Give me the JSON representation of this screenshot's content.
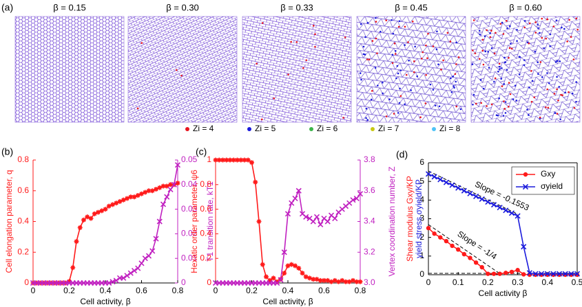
{
  "figure": {
    "panel_labels": [
      "(a)",
      "(b)",
      "(c)",
      "(d)"
    ],
    "snapshots": [
      "β = 0.15",
      "β = 0.30",
      "β = 0.33",
      "β = 0.45",
      "β = 0.60"
    ],
    "legend": [
      {
        "label": "Zi = 4",
        "color": "#e8141e"
      },
      {
        "label": "Zi = 5",
        "color": "#1a1adc"
      },
      {
        "label": "Zi = 6",
        "color": "#3cb44b"
      },
      {
        "label": "Zi = 7",
        "color": "#c8c814"
      },
      {
        "label": "Zi = 8",
        "color": "#4fc3f7"
      }
    ]
  },
  "chart_data": [
    {
      "type": "line",
      "x_label": "Cell activity, β",
      "y_label": [
        "Cell elongation parameter, q"
      ],
      "y2_label": "T1 transition rate, kT1",
      "x": [
        0,
        0.02,
        0.04,
        0.06,
        0.08,
        0.1,
        0.12,
        0.14,
        0.16,
        0.18,
        0.2,
        0.22,
        0.24,
        0.26,
        0.28,
        0.3,
        0.32,
        0.34,
        0.36,
        0.38,
        0.4,
        0.42,
        0.44,
        0.46,
        0.48,
        0.5,
        0.52,
        0.54,
        0.56,
        0.58,
        0.6,
        0.62,
        0.64,
        0.66,
        0.68,
        0.7,
        0.72,
        0.74,
        0.76,
        0.78,
        0.8
      ],
      "xlim": [
        0,
        0.8
      ],
      "xticks": [
        0,
        0.2,
        0.4,
        0.6,
        0.8
      ],
      "ylim": [
        0,
        0.8
      ],
      "yticks": [
        0,
        0.2,
        0.4,
        0.6,
        0.8
      ],
      "y2lim": [
        0,
        0.05
      ],
      "y2ticks": [
        0,
        0.01,
        0.02,
        0.03,
        0.04,
        0.05
      ],
      "box": false,
      "series": [
        {
          "color": "#ff1a1a",
          "marker": "asterisk",
          "values": [
            0,
            0,
            0,
            0,
            0,
            0,
            0,
            0,
            0,
            0,
            0.01,
            0.1,
            0.27,
            0.36,
            0.41,
            0.43,
            0.42,
            0.45,
            0.46,
            0.47,
            0.48,
            0.5,
            0.51,
            0.52,
            0.53,
            0.54,
            0.55,
            0.56,
            0.56,
            0.57,
            0.58,
            0.59,
            0.6,
            0.6,
            0.61,
            0.62,
            0.63,
            0.63,
            0.64,
            0.64,
            0.65
          ]
        },
        {
          "color": "#c020c0",
          "marker": "x",
          "axis": "y2",
          "values": [
            0,
            0,
            0,
            0,
            0,
            0,
            0,
            0,
            0,
            0,
            0,
            0,
            0,
            0,
            0,
            0,
            0,
            0,
            0,
            0,
            0,
            0,
            0.0005,
            0.001,
            0.002,
            0.002,
            0.003,
            0.004,
            0.005,
            0.006,
            0.008,
            0.01,
            0.011,
            0.013,
            0.018,
            0.025,
            0.032,
            0.035,
            0.038,
            0.04,
            0.048
          ]
        }
      ]
    },
    {
      "type": "line",
      "x_label": "Cell activity, β",
      "y_label": [
        "Hexatic order parameter, ψ6"
      ],
      "y2_label": "Vertex coordination number, Z",
      "x": [
        0,
        0.02,
        0.04,
        0.06,
        0.08,
        0.1,
        0.12,
        0.14,
        0.16,
        0.18,
        0.2,
        0.22,
        0.24,
        0.26,
        0.28,
        0.3,
        0.32,
        0.34,
        0.36,
        0.38,
        0.4,
        0.42,
        0.44,
        0.46,
        0.48,
        0.5,
        0.52,
        0.54,
        0.56,
        0.58,
        0.6,
        0.62,
        0.64,
        0.66,
        0.68,
        0.7,
        0.72,
        0.74,
        0.76,
        0.78,
        0.8
      ],
      "xlim": [
        0,
        0.8
      ],
      "xticks": [
        0,
        0.2,
        0.4,
        0.6,
        0.8
      ],
      "ylim": [
        0,
        1
      ],
      "yticks": [
        0,
        0.2,
        0.4,
        0.6,
        0.8,
        1
      ],
      "y2lim": [
        3,
        3.8
      ],
      "y2ticks": [
        {
          "value": 3,
          "label": "3.0"
        },
        3.2,
        3.4,
        3.6,
        3.8
      ],
      "box": false,
      "series": [
        {
          "color": "#ff1a1a",
          "marker": "asterisk",
          "values": [
            1,
            1,
            1,
            1,
            1,
            1,
            1,
            1,
            1,
            1,
            0.98,
            0.82,
            0.5,
            0.15,
            0.05,
            0.02,
            0.04,
            0.01,
            0.03,
            0.08,
            0.14,
            0.15,
            0.14,
            0.12,
            0.08,
            0.05,
            0.04,
            0.03,
            0.03,
            0.02,
            0.02,
            0.02,
            0.01,
            0.02,
            0.01,
            0.02,
            0.01,
            0.01,
            0.02,
            0.01,
            0.01
          ]
        },
        {
          "color": "#c020c0",
          "marker": "x",
          "axis": "y2",
          "values": [
            3,
            3,
            3,
            3,
            3,
            3,
            3,
            3,
            3,
            3,
            3,
            3,
            3,
            3,
            3,
            3,
            3,
            3,
            3.02,
            3.2,
            3.45,
            3.52,
            3.55,
            3.6,
            3.45,
            3.43,
            3.42,
            3.4,
            3.43,
            3.38,
            3.42,
            3.4,
            3.44,
            3.42,
            3.46,
            3.48,
            3.5,
            3.52,
            3.54,
            3.55,
            3.58
          ]
        }
      ]
    },
    {
      "type": "line",
      "x_label": "Cell activity β",
      "y_label": [
        "Shear modulus Gxy/KP",
        "yield stress σyield/KP"
      ],
      "x": [
        0,
        0.02,
        0.04,
        0.06,
        0.08,
        0.1,
        0.12,
        0.14,
        0.16,
        0.18,
        0.2,
        0.22,
        0.24,
        0.26,
        0.28,
        0.3,
        0.32,
        0.34,
        0.36,
        0.38,
        0.4,
        0.42,
        0.44,
        0.46,
        0.48,
        0.5
      ],
      "xlim": [
        0,
        0.5
      ],
      "xticks": [
        0,
        0.1,
        0.2,
        0.3,
        0.4,
        0.5
      ],
      "ylim": [
        0,
        6
      ],
      "yticks": [
        0,
        1,
        2,
        3,
        4,
        5,
        6
      ],
      "box": true,
      "legend": "upper right",
      "annotations": [
        "Slope = -0.1553",
        "Slope = -1/4"
      ],
      "series": [
        {
          "name": "Gxy",
          "color": "#ff1a1a",
          "marker": "circle",
          "values": [
            2.5,
            2.2,
            2,
            1.8,
            1.55,
            1.35,
            1.1,
            0.9,
            0.65,
            0.4,
            0.05,
            0.05,
            0.05,
            0.1,
            0.15,
            0.25,
            0.02,
            0,
            0,
            0,
            0,
            0,
            0,
            0,
            0,
            0
          ]
        },
        {
          "name": "σyield",
          "color": "#1a1adc",
          "marker": "x",
          "values": [
            5.4,
            5.25,
            5.1,
            4.95,
            4.8,
            4.65,
            4.5,
            4.35,
            4.2,
            4.05,
            3.9,
            3.75,
            3.6,
            3.45,
            3.3,
            3.15,
            1.5,
            0.1,
            0.05,
            0.05,
            0.05,
            0.05,
            0.05,
            0.05,
            0.05,
            0.05
          ]
        }
      ]
    }
  ]
}
